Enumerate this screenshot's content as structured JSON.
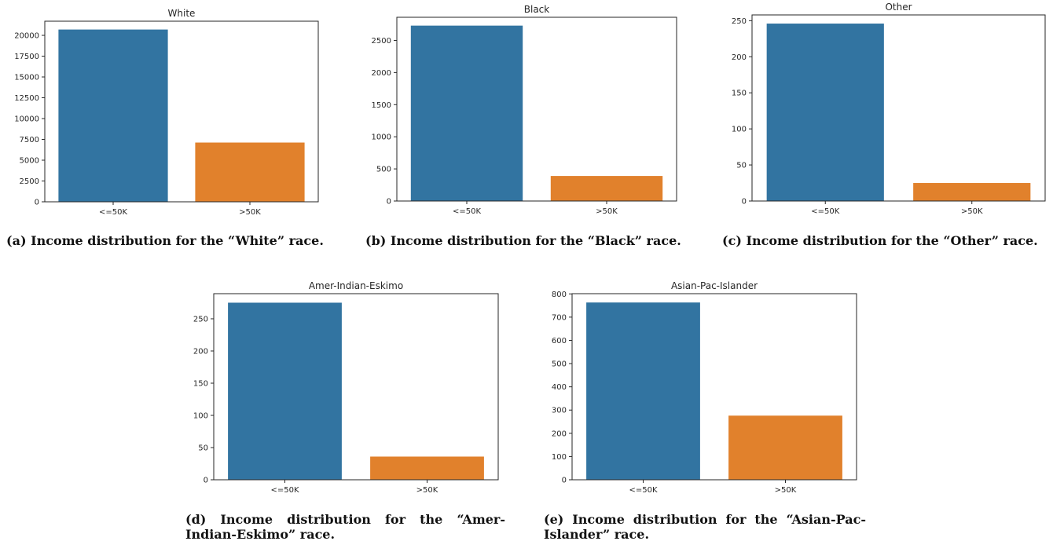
{
  "colors": {
    "below_50k": "#3274a1",
    "above_50k": "#e1812c"
  },
  "chart_data": [
    {
      "type": "bar",
      "title": "White",
      "categories": [
        "<=50K",
        ">50K"
      ],
      "values": [
        20700,
        7120
      ],
      "ylim": [
        0,
        21700
      ],
      "yticks": [
        0,
        2500,
        5000,
        7500,
        10000,
        12500,
        15000,
        17500,
        20000
      ],
      "ytick_labels": [
        "0",
        "2500",
        "5000",
        "7500",
        "10000",
        "12500",
        "15000",
        "17500",
        "20000"
      ],
      "xlabel": "",
      "ylabel": "",
      "caption": "(a) Income distribution for the “White” race."
    },
    {
      "type": "bar",
      "title": "Black",
      "categories": [
        "<=50K",
        ">50K"
      ],
      "values": [
        2730,
        390
      ],
      "ylim": [
        0,
        2860
      ],
      "yticks": [
        0,
        500,
        1000,
        1500,
        2000,
        2500
      ],
      "ytick_labels": [
        "0",
        "500",
        "1000",
        "1500",
        "2000",
        "2500"
      ],
      "xlabel": "",
      "ylabel": "",
      "caption": "(b) Income distribution for the “Black” race."
    },
    {
      "type": "bar",
      "title": "Other",
      "categories": [
        "<=50K",
        ">50K"
      ],
      "values": [
        246,
        25
      ],
      "ylim": [
        0,
        258
      ],
      "yticks": [
        0,
        50,
        100,
        150,
        200,
        250
      ],
      "ytick_labels": [
        "0",
        "50",
        "100",
        "150",
        "200",
        "250"
      ],
      "xlabel": "",
      "ylabel": "",
      "caption": "(c) Income distribution for the “Other” race."
    },
    {
      "type": "bar",
      "title": "Amer-Indian-Eskimo",
      "categories": [
        "<=50K",
        ">50K"
      ],
      "values": [
        275,
        36
      ],
      "ylim": [
        0,
        289
      ],
      "yticks": [
        0,
        50,
        100,
        150,
        200,
        250
      ],
      "ytick_labels": [
        "0",
        "50",
        "100",
        "150",
        "200",
        "250"
      ],
      "xlabel": "",
      "ylabel": "",
      "caption": "(d) Income distribution for the “Amer-Indian-Eskimo” race."
    },
    {
      "type": "bar",
      "title": "Asian-Pac-Islander",
      "categories": [
        "<=50K",
        ">50K"
      ],
      "values": [
        763,
        276
      ],
      "ylim": [
        0,
        801
      ],
      "yticks": [
        0,
        100,
        200,
        300,
        400,
        500,
        600,
        700,
        800
      ],
      "ytick_labels": [
        "0",
        "100",
        "200",
        "300",
        "400",
        "500",
        "600",
        "700",
        "800"
      ],
      "xlabel": "",
      "ylabel": "",
      "caption": "(e) Income distribution for the “Asian-Pac-Islander” race."
    }
  ]
}
